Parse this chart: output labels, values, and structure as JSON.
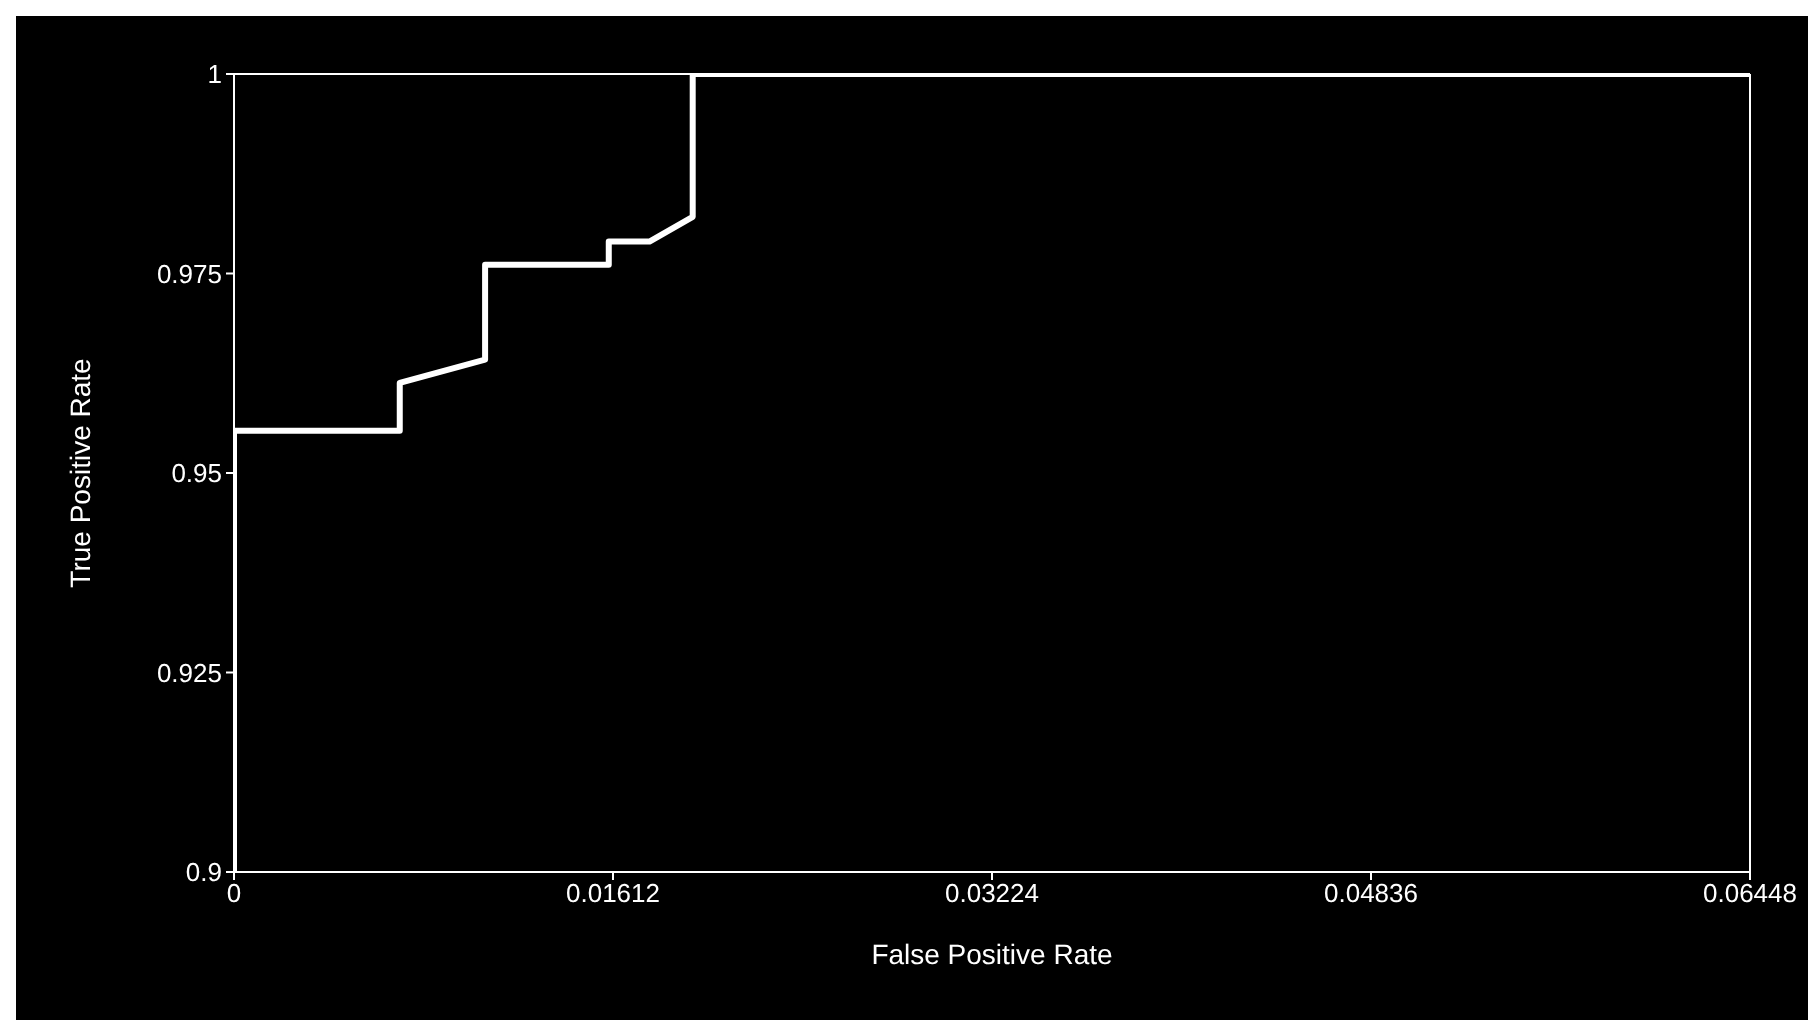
{
  "chart_data": {
    "type": "line",
    "xlabel": "False Positive Rate",
    "ylabel": "True Positive Rate",
    "x": [
      0,
      0,
      0.00705,
      0.00705,
      0.01068,
      0.01068,
      0.01594,
      0.01594,
      0.01767,
      0.01951,
      0.01951,
      0.06448
    ],
    "series": [
      {
        "color": "#ffffff",
        "values": [
          0.9,
          0.9553,
          0.9553,
          0.9613,
          0.9642,
          0.9761,
          0.9761,
          0.979,
          0.979,
          0.9821,
          1,
          1
        ]
      }
    ],
    "xlim": [
      0,
      0.06448
    ],
    "xticks": [
      0,
      0.01612,
      0.03224,
      0.04836,
      0.06448
    ],
    "ylim": [
      0.9,
      1
    ],
    "yticks": [
      0.9,
      0.925,
      0.95,
      0.975,
      1
    ],
    "grid": false,
    "legend": false,
    "marker": "none",
    "line_style": "solid"
  }
}
